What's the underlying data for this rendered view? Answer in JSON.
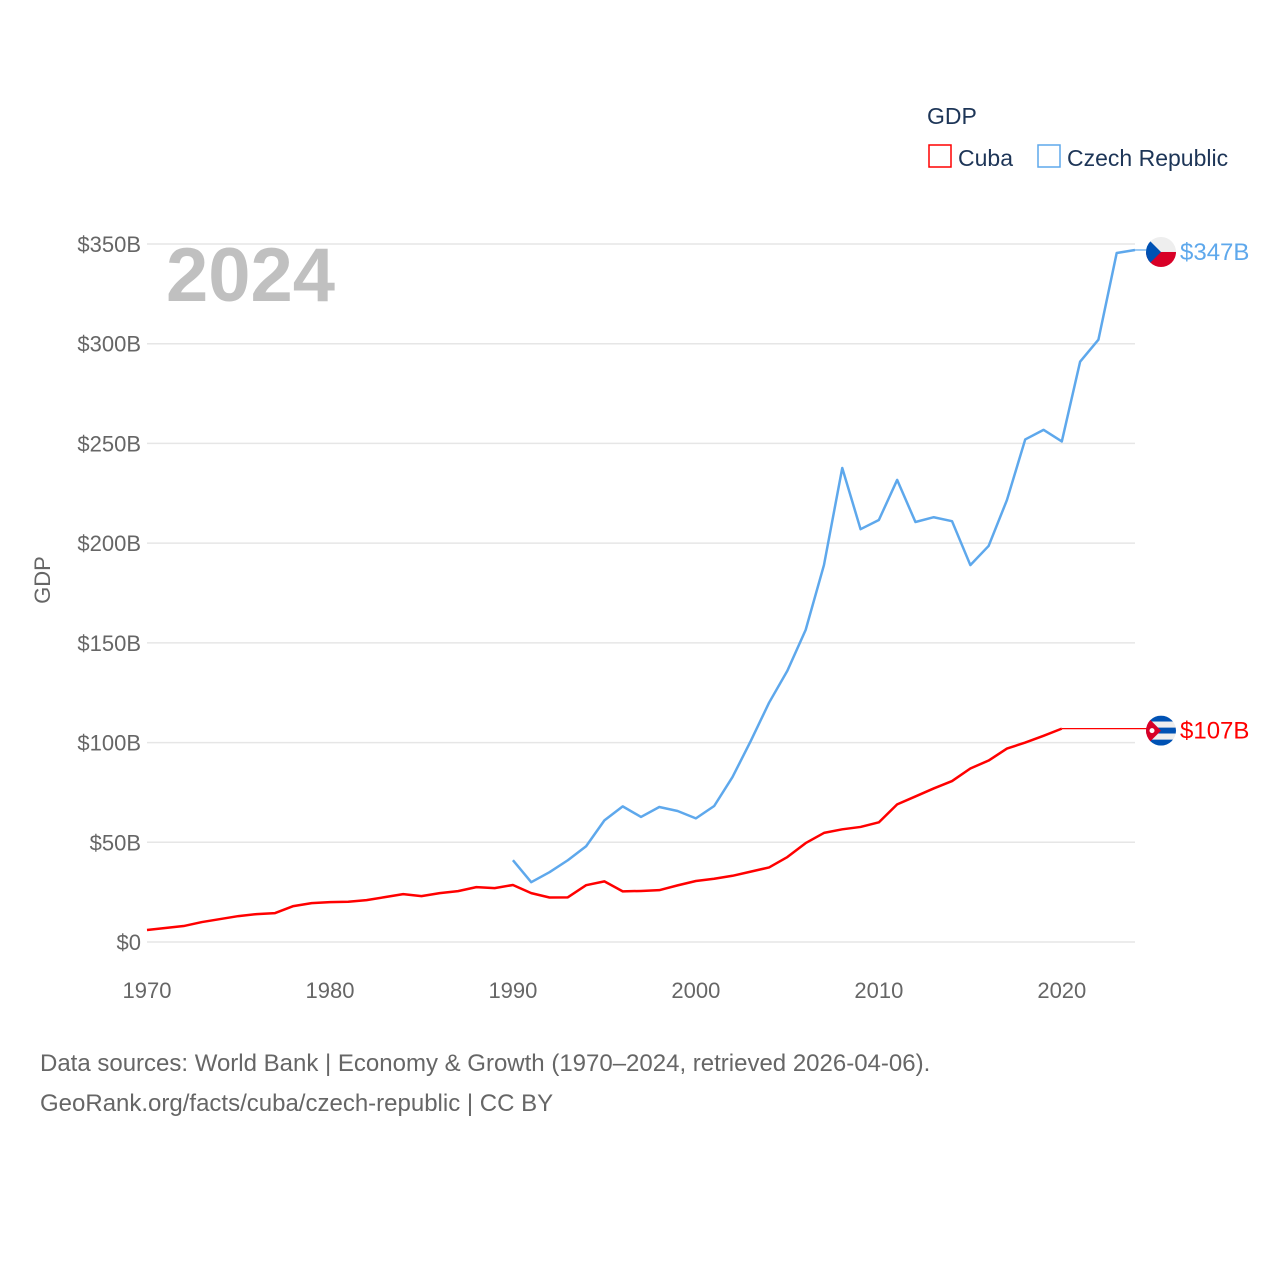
{
  "chart_data": {
    "type": "line",
    "title": "GDP",
    "year_label": "2024",
    "ylabel": "GDP",
    "xlabel": "",
    "xlim": [
      1970,
      2024
    ],
    "ylim": [
      0,
      350
    ],
    "x_ticks": [
      "1970",
      "1980",
      "1990",
      "2000",
      "2010",
      "2020"
    ],
    "x_tick_values": [
      1970,
      1980,
      1990,
      2000,
      2010,
      2020
    ],
    "y_ticks": [
      "$0",
      "$50B",
      "$100B",
      "$150B",
      "$200B",
      "$250B",
      "$300B",
      "$350B"
    ],
    "y_tick_values": [
      0,
      50,
      100,
      150,
      200,
      250,
      300,
      350
    ],
    "grid": true,
    "legend_placement": "top-right",
    "series": [
      {
        "name": "Cuba",
        "color": "#ff0000",
        "end_label": "$107B",
        "flag": "cuba-flag",
        "x": [
          1970,
          1971,
          1972,
          1973,
          1974,
          1975,
          1976,
          1977,
          1978,
          1979,
          1980,
          1981,
          1982,
          1983,
          1984,
          1985,
          1986,
          1987,
          1988,
          1989,
          1990,
          1991,
          1992,
          1993,
          1994,
          1995,
          1996,
          1997,
          1998,
          1999,
          2000,
          2001,
          2002,
          2003,
          2004,
          2005,
          2006,
          2007,
          2008,
          2009,
          2010,
          2011,
          2012,
          2013,
          2014,
          2015,
          2016,
          2017,
          2018,
          2019,
          2020
        ],
        "values": [
          6,
          7,
          8,
          10,
          11.5,
          13,
          14,
          14.5,
          18,
          19.5,
          20,
          20.2,
          21,
          22.5,
          24,
          23,
          24.5,
          25.5,
          27.5,
          27,
          28.6,
          24.5,
          22.3,
          22.4,
          28.5,
          30.4,
          25.4,
          25.6,
          26,
          28.4,
          30.6,
          31.7,
          33.2,
          35.3,
          37.4,
          42.6,
          49.6,
          54.7,
          56.5,
          57.7,
          60,
          69,
          73,
          77,
          80.7,
          87,
          91,
          97,
          100,
          103.4,
          107
        ],
        "carried_forward_to": 2024
      },
      {
        "name": "Czech Republic",
        "color": "#5ea8ec",
        "end_label": "$347B",
        "flag": "czech-flag",
        "x": [
          1990,
          1991,
          1992,
          1993,
          1994,
          1995,
          1996,
          1997,
          1998,
          1999,
          2000,
          2001,
          2002,
          2003,
          2004,
          2005,
          2006,
          2007,
          2008,
          2009,
          2010,
          2011,
          2012,
          2013,
          2014,
          2015,
          2016,
          2017,
          2018,
          2019,
          2020,
          2021,
          2022,
          2023,
          2024
        ],
        "values": [
          41,
          30,
          35,
          41,
          48,
          61,
          68,
          62.7,
          67.7,
          65.7,
          62,
          68.2,
          82.7,
          100.8,
          120,
          136,
          156.5,
          189,
          237.7,
          207,
          211.6,
          231.7,
          210.6,
          213,
          211,
          189,
          198.6,
          221.6,
          252,
          256.8,
          251,
          291,
          302,
          345.5,
          347
        ]
      }
    ]
  },
  "footer": {
    "line1": "Data sources: World Bank | Economy & Growth (1970–2024, retrieved 2026-04-06).",
    "line2": "GeoRank.org/facts/cuba/czech-republic | CC BY"
  }
}
